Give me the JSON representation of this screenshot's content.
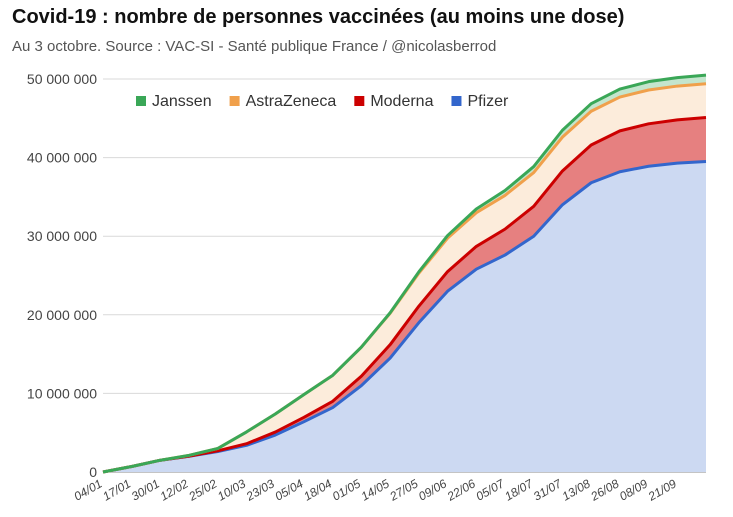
{
  "title": "Covid-19 : nombre de personnes vaccinées (au moins une dose)",
  "subtitle": "Au 3 octobre. Source : VAC-SI - Santé publique France / @nicolasberrod",
  "chart_data": {
    "type": "area",
    "stacked": true,
    "title": "Covid-19 : nombre de personnes vaccinées (au moins une dose)",
    "subtitle": "Au 3 octobre. Source : VAC-SI - Santé publique France / @nicolasberrod",
    "y_tick_labels": [
      "0",
      "10 000 000",
      "20 000 000",
      "30 000 000",
      "40 000 000",
      "50 000 000"
    ],
    "ylim": [
      0,
      50000000
    ],
    "x_tick_labels": [
      "04/01",
      "17/01",
      "30/01",
      "12/02",
      "25/02",
      "10/03",
      "23/03",
      "05/04",
      "18/04",
      "01/05",
      "14/05",
      "27/05",
      "09/06",
      "22/06",
      "05/07",
      "18/07",
      "31/07",
      "13/08",
      "26/08",
      "08/09",
      "21/09"
    ],
    "x": [
      "04/01",
      "17/01",
      "30/01",
      "12/02",
      "25/02",
      "10/03",
      "23/03",
      "05/04",
      "18/04",
      "01/05",
      "14/05",
      "27/05",
      "09/06",
      "22/06",
      "05/07",
      "18/07",
      "31/07",
      "13/08",
      "26/08",
      "08/09",
      "21/09",
      "03/10"
    ],
    "series": [
      {
        "name": "Pfizer",
        "color": "#3366cc",
        "values": [
          0,
          700000,
          1500000,
          2000000,
          2600000,
          3400000,
          4700000,
          6400000,
          8200000,
          11000000,
          14500000,
          19000000,
          23000000,
          25800000,
          27600000,
          30000000,
          34000000,
          36800000,
          38200000,
          38900000,
          39300000,
          39500000
        ]
      },
      {
        "name": "Moderna",
        "color": "#cc0000",
        "values": [
          0,
          0,
          0,
          20000,
          100000,
          200000,
          380000,
          560000,
          800000,
          1200000,
          1700000,
          2100000,
          2500000,
          2900000,
          3300000,
          3800000,
          4300000,
          4800000,
          5200000,
          5400000,
          5500000,
          5600000
        ]
      },
      {
        "name": "AstraZeneca",
        "color": "#f0a04b",
        "values": [
          0,
          0,
          0,
          100000,
          300000,
          1500000,
          2300000,
          2900000,
          3300000,
          3700000,
          4000000,
          4200000,
          4250000,
          4280000,
          4290000,
          4300000,
          4300000,
          4300000,
          4300000,
          4300000,
          4300000,
          4300000
        ]
      },
      {
        "name": "Janssen",
        "color": "#3aa757",
        "values": [
          0,
          0,
          0,
          0,
          0,
          0,
          0,
          0,
          0,
          0,
          60000,
          170000,
          330000,
          480000,
          620000,
          760000,
          880000,
          960000,
          1020000,
          1060000,
          1080000,
          1100000
        ]
      }
    ],
    "legend": {
      "placement": "top-left",
      "order": [
        "Janssen",
        "AstraZeneca",
        "Moderna",
        "Pfizer"
      ]
    },
    "grid": true
  }
}
